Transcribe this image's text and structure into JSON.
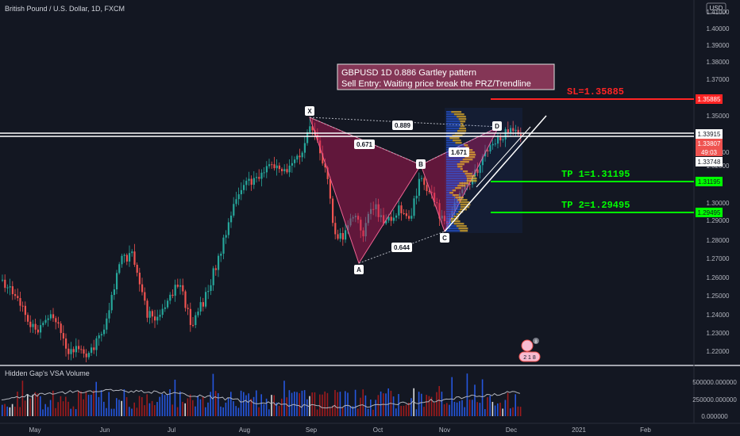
{
  "header": {
    "symbol_title": "British Pound / U.S. Dollar, 1D, FXCM",
    "currency": "USD"
  },
  "annotation": {
    "line1": "GBPUSD 1D 0.886 Gartley pattern",
    "line2": "Sell Entry: Waiting price break the PRZ/Trendline"
  },
  "levels": {
    "sl_text": "SL=1.35885",
    "tp1_text": "TP 1=1.31195",
    "tp2_text": "TP 2=1.29495"
  },
  "price_axis": {
    "ticks": [
      "1.41000",
      "1.40000",
      "1.39000",
      "1.38000",
      "1.37000",
      "1.35000",
      "1.33000",
      "1.32000",
      "1.30000",
      "1.29000",
      "1.28000",
      "1.27000",
      "1.26000",
      "1.25000",
      "1.24000",
      "1.23000",
      "1.22000"
    ],
    "badges": {
      "sl": "1.35885",
      "white_line": "1.33915",
      "current": "1.33807",
      "countdown": "49:03",
      "low_line": "1.33748",
      "tp1": "1.31195",
      "tp2": "1.29495"
    }
  },
  "pattern": {
    "points": [
      "X",
      "A",
      "B",
      "C",
      "D"
    ],
    "ratios": {
      "xb": "0.671",
      "ac": "0.644",
      "bd": "1.671",
      "xd": "0.889"
    }
  },
  "indicator": {
    "title": "Hidden Gap's VSA Volume",
    "ticks": [
      "500000.000000",
      "250000.000000",
      "0.000000"
    ]
  },
  "time_axis": [
    "May",
    "Jun",
    "Jul",
    "Aug",
    "Sep",
    "Oct",
    "Nov",
    "Dec",
    "2021",
    "Feb"
  ],
  "icon_badges": {
    "top": "8",
    "bottom": "2 1 8"
  },
  "colors": {
    "background": "#131722",
    "bull": "#26a69a",
    "bear": "#ef5350",
    "pattern_fill": "#c2185b",
    "sl_red": "#ff2424",
    "tp_green": "#00ff00"
  }
}
